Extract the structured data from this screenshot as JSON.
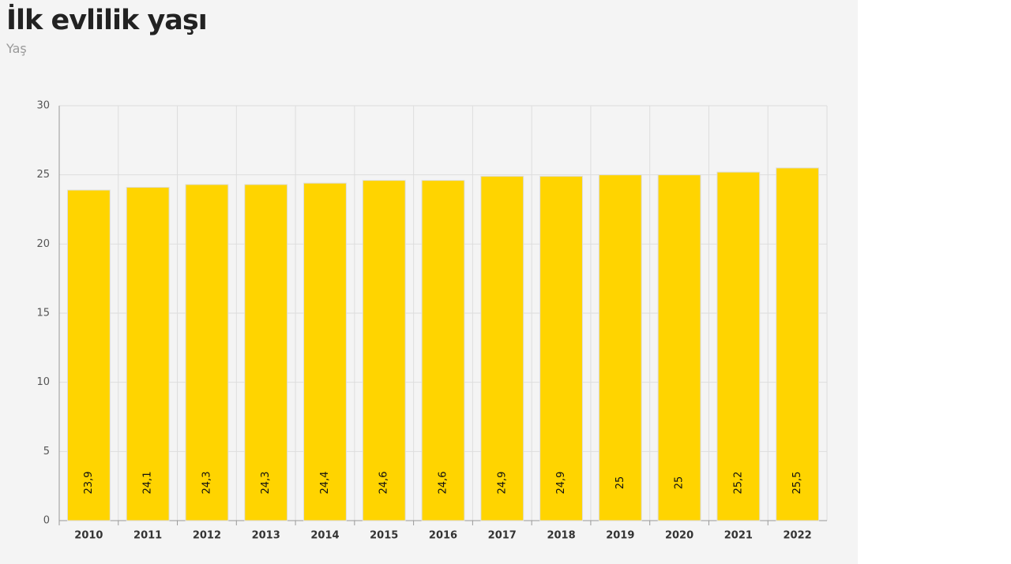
{
  "chart_data": {
    "type": "bar",
    "title": "İlk evlilik yaşı",
    "subtitle": "Yaş",
    "categories": [
      "2010",
      "2011",
      "2012",
      "2013",
      "2014",
      "2015",
      "2016",
      "2017",
      "2018",
      "2019",
      "2020",
      "2021",
      "2022"
    ],
    "values": [
      23.9,
      24.1,
      24.3,
      24.3,
      24.4,
      24.6,
      24.6,
      24.9,
      24.9,
      25,
      25,
      25.2,
      25.5
    ],
    "value_labels": [
      "23,9",
      "24,1",
      "24,3",
      "24,3",
      "24,4",
      "24,6",
      "24,6",
      "24,9",
      "24,9",
      "25",
      "25",
      "25,2",
      "25,5"
    ],
    "color": "#ffd400",
    "ylim": [
      0,
      30
    ],
    "yticks": [
      0,
      5,
      10,
      15,
      20,
      25,
      30
    ],
    "grid": true
  }
}
